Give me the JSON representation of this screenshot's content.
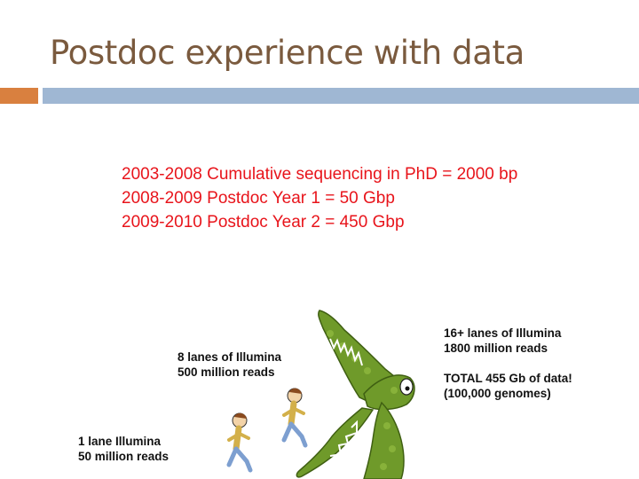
{
  "slide": {
    "title": "Postdoc experience with data"
  },
  "colors": {
    "title": "#7a5a3e",
    "accent_orange": "#d9803f",
    "accent_blue": "#9fb7d3",
    "stat_text": "#e8141b",
    "gator_green": "#6f9a2a"
  },
  "stats": [
    "2003-2008 Cumulative sequencing in PhD = 2000 bp",
    "2008-2009 Postdoc Year 1 = 50 Gbp",
    "2009-2010 Postdoc Year 2 = 450 Gbp"
  ],
  "illustration": {
    "label_1_lane": {
      "line1": "1 lane Illumina",
      "line2": "50 million reads"
    },
    "label_8_lanes": {
      "line1": "8 lanes of Illumina",
      "line2": "500 million reads"
    },
    "label_16_lanes": {
      "line1": "16+ lanes of Illumina",
      "line2": "1800 million reads",
      "line3": "TOTAL 455 Gb of data!",
      "line4": "(100,000 genomes)"
    },
    "icons": [
      "running-person-icon",
      "running-person-icon",
      "crocodile-icon"
    ]
  }
}
